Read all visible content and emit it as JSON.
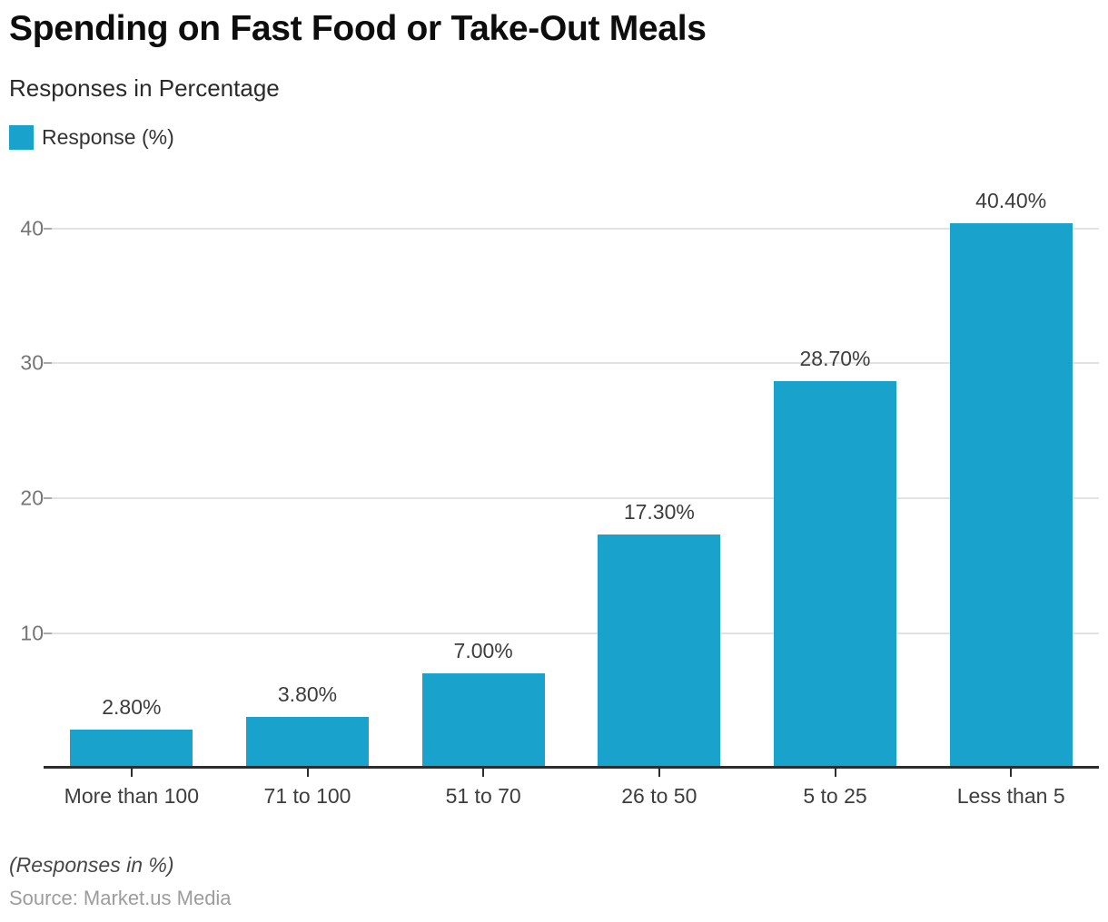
{
  "header": {
    "title": "Spending on Fast Food or Take-Out Meals",
    "subtitle": "Responses in Percentage"
  },
  "legend": {
    "label": "Response (%)",
    "swatch_color": "#19a2cb"
  },
  "chart_data": {
    "type": "bar",
    "title": "Spending on Fast Food or Take-Out Meals",
    "categories": [
      "More than 100",
      "71 to 100",
      "51 to 70",
      "26 to 50",
      "5 to 25",
      "Less than 5"
    ],
    "values": [
      2.8,
      3.8,
      7.0,
      17.3,
      28.7,
      40.4
    ],
    "value_labels": [
      "2.80%",
      "3.80%",
      "7.00%",
      "17.30%",
      "28.70%",
      "40.40%"
    ],
    "series_name": "Response (%)",
    "yticks": [
      10,
      20,
      30,
      40
    ],
    "ylim": [
      0,
      43.5
    ],
    "xlabel": "",
    "ylabel": "",
    "grid": true,
    "legend_position": "top-left",
    "bar_color": "#19a2cb"
  },
  "footer": {
    "note": "(Responses in %)",
    "source": "Source: Market.us Media"
  },
  "colors": {
    "bar": "#19a2cb",
    "grid_line": "#e2e2e2",
    "axis_line": "#2d2d2d",
    "y_tick_text": "#757575",
    "label_text": "#3d3d3d",
    "source_text": "#9c9c9c"
  }
}
